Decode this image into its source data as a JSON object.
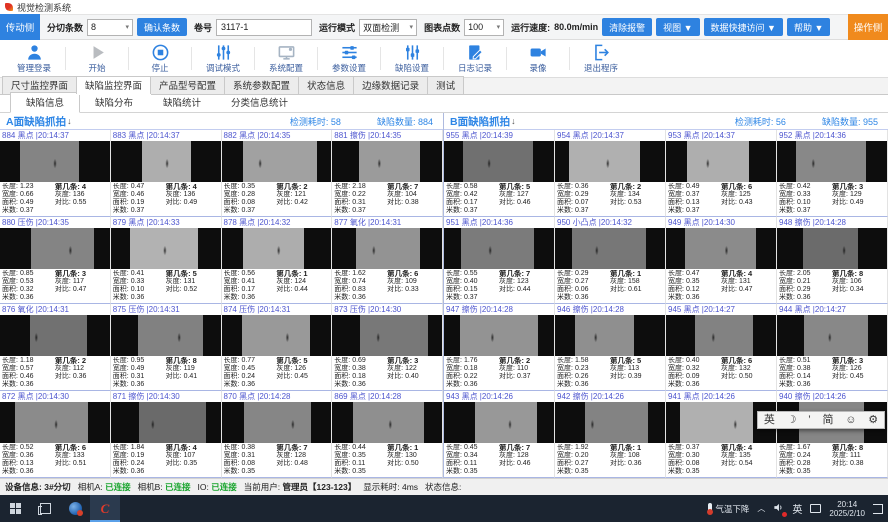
{
  "window": {
    "title": "视觉检测系统"
  },
  "icons": {
    "caret": "▾",
    "arrow_down": "↓",
    "chevron_up": "︿"
  },
  "toolbar1": {
    "side_button": "传动侧",
    "slit_count_label": "分切条数",
    "slit_count_value": "8",
    "confirm_button": "确认条数",
    "roll_label": "卷号",
    "roll_value": "3117-1",
    "run_mode_label": "运行模式",
    "run_mode_value": "双面检测",
    "chart_points_label": "图表点数",
    "chart_points_value": "100",
    "speed_label": "运行速度:",
    "speed_value": "80.0m/min",
    "clear_alarm_button": "清除报警",
    "view_menu": "视图 ▼",
    "quick_access_menu": "数据快捷访问 ▼",
    "help_menu": "帮助 ▼",
    "operator_side_button": "操作侧"
  },
  "toolbar2": {
    "items": [
      {
        "label": "管理登录",
        "icon": "user"
      },
      {
        "label": "开始",
        "icon": "play"
      },
      {
        "label": "停止",
        "icon": "stop"
      },
      {
        "label": "调试模式",
        "icon": "tune-vertical"
      },
      {
        "label": "系统配置",
        "icon": "monitor-gear"
      },
      {
        "label": "参数设置",
        "icon": "sliders-horizontal"
      },
      {
        "label": "缺陷设置",
        "icon": "sliders-vertical"
      },
      {
        "label": "日志记录",
        "icon": "log-edit"
      },
      {
        "label": "录像",
        "icon": "video-camera"
      },
      {
        "label": "退出程序",
        "icon": "exit-door"
      }
    ]
  },
  "tabs_main": [
    "尺寸监控界面",
    "缺陷监控界面",
    "产品型号配置",
    "系统参数配置",
    "状态信息",
    "边缘数据记录",
    "测试"
  ],
  "tabs_main_active_index": 1,
  "tabs_sub": [
    "缺陷信息",
    "缺陷分布",
    "缺陷统计",
    "分类信息统计"
  ],
  "tabs_sub_active_index": 0,
  "cell_labels": {
    "length": "长度:",
    "width": "宽度:",
    "area": "面积:",
    "meter": "米数:",
    "strip": "第几条:",
    "gray": "灰度:",
    "contrast": "对比:"
  },
  "panels": [
    {
      "title": "A面缺陷抓拍",
      "time_label": "检测耗时:",
      "time_value": "58",
      "count_label": "缺陷数量:",
      "count_value": "884",
      "cells": [
        {
          "id": "884",
          "type": "黑点",
          "time": "20:14:37",
          "length": "1.23",
          "width": "0.66",
          "area": "0.49",
          "meter": "0.37",
          "strip": "4",
          "gray": "136",
          "contrast": "0.55"
        },
        {
          "id": "883",
          "type": "黑点",
          "time": "20:14:37",
          "length": "0.47",
          "width": "0.46",
          "area": "0.19",
          "meter": "0.37",
          "strip": "4",
          "gray": "136",
          "contrast": "0.49"
        },
        {
          "id": "882",
          "type": "黑点",
          "time": "20:14:35",
          "length": "0.35",
          "width": "0.28",
          "area": "0.08",
          "meter": "0.37",
          "strip": "2",
          "gray": "121",
          "contrast": "0.42"
        },
        {
          "id": "881",
          "type": "擦伤",
          "time": "20:14:35",
          "length": "2.18",
          "width": "0.22",
          "area": "0.31",
          "meter": "0.37",
          "strip": "7",
          "gray": "104",
          "contrast": "0.38"
        },
        {
          "id": "880",
          "type": "压伤",
          "time": "20:14:35",
          "length": "0.85",
          "width": "0.53",
          "area": "0.32",
          "meter": "0.36",
          "strip": "3",
          "gray": "117",
          "contrast": "0.47"
        },
        {
          "id": "879",
          "type": "黑点",
          "time": "20:14:33",
          "length": "0.41",
          "width": "0.33",
          "area": "0.10",
          "meter": "0.36",
          "strip": "5",
          "gray": "131",
          "contrast": "0.52"
        },
        {
          "id": "878",
          "type": "黑点",
          "time": "20:14:32",
          "length": "0.56",
          "width": "0.41",
          "area": "0.17",
          "meter": "0.36",
          "strip": "1",
          "gray": "124",
          "contrast": "0.44"
        },
        {
          "id": "877",
          "type": "氧化",
          "time": "20:14:31",
          "length": "1.62",
          "width": "0.74",
          "area": "0.83",
          "meter": "0.36",
          "strip": "6",
          "gray": "109",
          "contrast": "0.33"
        },
        {
          "id": "876",
          "type": "氧化",
          "time": "20:14:31",
          "length": "1.18",
          "width": "0.57",
          "area": "0.46",
          "meter": "0.36",
          "strip": "2",
          "gray": "112",
          "contrast": "0.36"
        },
        {
          "id": "875",
          "type": "压伤",
          "time": "20:14:31",
          "length": "0.95",
          "width": "0.49",
          "area": "0.31",
          "meter": "0.36",
          "strip": "8",
          "gray": "119",
          "contrast": "0.41"
        },
        {
          "id": "874",
          "type": "压伤",
          "time": "20:14:31",
          "length": "0.77",
          "width": "0.45",
          "area": "0.24",
          "meter": "0.36",
          "strip": "5",
          "gray": "126",
          "contrast": "0.45"
        },
        {
          "id": "873",
          "type": "压伤",
          "time": "20:14:30",
          "length": "0.69",
          "width": "0.38",
          "area": "0.18",
          "meter": "0.36",
          "strip": "3",
          "gray": "122",
          "contrast": "0.40"
        },
        {
          "id": "872",
          "type": "黑点",
          "time": "20:14:30",
          "length": "0.52",
          "width": "0.36",
          "area": "0.13",
          "meter": "0.36",
          "strip": "6",
          "gray": "133",
          "contrast": "0.51"
        },
        {
          "id": "871",
          "type": "擦伤",
          "time": "20:14:30",
          "length": "1.84",
          "width": "0.19",
          "area": "0.24",
          "meter": "0.36",
          "strip": "4",
          "gray": "107",
          "contrast": "0.35"
        },
        {
          "id": "870",
          "type": "黑点",
          "time": "20:14:28",
          "length": "0.38",
          "width": "0.31",
          "area": "0.08",
          "meter": "0.35",
          "strip": "7",
          "gray": "128",
          "contrast": "0.48"
        },
        {
          "id": "869",
          "type": "黑点",
          "time": "20:14:28",
          "length": "0.44",
          "width": "0.35",
          "area": "0.11",
          "meter": "0.35",
          "strip": "1",
          "gray": "130",
          "contrast": "0.50"
        }
      ]
    },
    {
      "title": "B面缺陷抓拍",
      "time_label": "检测耗时:",
      "time_value": "56",
      "count_label": "缺陷数量:",
      "count_value": "955",
      "cells": [
        {
          "id": "955",
          "type": "黑点",
          "time": "20:14:39",
          "length": "0.58",
          "width": "0.42",
          "area": "0.17",
          "meter": "0.37",
          "strip": "5",
          "gray": "127",
          "contrast": "0.46"
        },
        {
          "id": "954",
          "type": "黑点",
          "time": "20:14:37",
          "length": "0.36",
          "width": "0.29",
          "area": "0.07",
          "meter": "0.37",
          "strip": "2",
          "gray": "134",
          "contrast": "0.53"
        },
        {
          "id": "953",
          "type": "黑点",
          "time": "20:14:37",
          "length": "0.49",
          "width": "0.37",
          "area": "0.13",
          "meter": "0.37",
          "strip": "6",
          "gray": "125",
          "contrast": "0.43"
        },
        {
          "id": "952",
          "type": "黑点",
          "time": "20:14:36",
          "length": "0.42",
          "width": "0.33",
          "area": "0.10",
          "meter": "0.37",
          "strip": "3",
          "gray": "129",
          "contrast": "0.49"
        },
        {
          "id": "951",
          "type": "黑点",
          "time": "20:14:36",
          "length": "0.55",
          "width": "0.40",
          "area": "0.15",
          "meter": "0.37",
          "strip": "7",
          "gray": "123",
          "contrast": "0.44"
        },
        {
          "id": "950",
          "type": "小凸点",
          "time": "20:14:32",
          "length": "0.29",
          "width": "0.27",
          "area": "0.06",
          "meter": "0.36",
          "strip": "1",
          "gray": "158",
          "contrast": "0.61"
        },
        {
          "id": "949",
          "type": "黑点",
          "time": "20:14:30",
          "length": "0.47",
          "width": "0.35",
          "area": "0.12",
          "meter": "0.36",
          "strip": "4",
          "gray": "131",
          "contrast": "0.47"
        },
        {
          "id": "948",
          "type": "擦伤",
          "time": "20:14:28",
          "length": "2.05",
          "width": "0.21",
          "area": "0.29",
          "meter": "0.36",
          "strip": "8",
          "gray": "106",
          "contrast": "0.34"
        },
        {
          "id": "947",
          "type": "擦伤",
          "time": "20:14:28",
          "length": "1.76",
          "width": "0.18",
          "area": "0.22",
          "meter": "0.36",
          "strip": "2",
          "gray": "110",
          "contrast": "0.37"
        },
        {
          "id": "946",
          "type": "擦伤",
          "time": "20:14:28",
          "length": "1.58",
          "width": "0.23",
          "area": "0.26",
          "meter": "0.36",
          "strip": "5",
          "gray": "113",
          "contrast": "0.39"
        },
        {
          "id": "945",
          "type": "黑点",
          "time": "20:14:27",
          "length": "0.40",
          "width": "0.32",
          "area": "0.09",
          "meter": "0.36",
          "strip": "6",
          "gray": "132",
          "contrast": "0.50"
        },
        {
          "id": "944",
          "type": "黑点",
          "time": "20:14:27",
          "length": "0.51",
          "width": "0.38",
          "area": "0.14",
          "meter": "0.36",
          "strip": "3",
          "gray": "126",
          "contrast": "0.45"
        },
        {
          "id": "943",
          "type": "黑点",
          "time": "20:14:26",
          "length": "0.45",
          "width": "0.34",
          "area": "0.11",
          "meter": "0.35",
          "strip": "7",
          "gray": "128",
          "contrast": "0.46"
        },
        {
          "id": "942",
          "type": "擦伤",
          "time": "20:14:26",
          "length": "1.92",
          "width": "0.20",
          "area": "0.27",
          "meter": "0.35",
          "strip": "1",
          "gray": "108",
          "contrast": "0.36"
        },
        {
          "id": "941",
          "type": "黑点",
          "time": "20:14:26",
          "length": "0.37",
          "width": "0.30",
          "area": "0.08",
          "meter": "0.35",
          "strip": "4",
          "gray": "135",
          "contrast": "0.54"
        },
        {
          "id": "940",
          "type": "擦伤",
          "time": "20:14:26",
          "length": "1.67",
          "width": "0.24",
          "area": "0.28",
          "meter": "0.35",
          "strip": "8",
          "gray": "111",
          "contrast": "0.38"
        }
      ]
    }
  ],
  "statusbar": {
    "device_label": "设备信息:",
    "device_value": "3#分切",
    "cam_a_label": "相机A:",
    "cam_a_value": "已连接",
    "cam_b_label": "相机B:",
    "cam_b_value": "已连接",
    "io_label": "IO:",
    "io_value": "已连接",
    "user_label": "当前用户:",
    "user_value": "管理员【123-123】",
    "display_time_label": "显示耗时:",
    "display_time_value": "4ms",
    "status_label": "状态信息:"
  },
  "taskbar": {
    "weather_text": "气温下降",
    "lang_indicator": "英",
    "time": "20:14",
    "date": "2025/2/10"
  },
  "ime_bar": {
    "lang": "英",
    "shape": "☽",
    "punct": "’",
    "charset": "简",
    "emoji": "☺",
    "settings": "⚙"
  },
  "accent_colors": {
    "blue": "#2e82e0",
    "orange": "#f08a1d",
    "green": "#17a42c",
    "cell_text": "#4d55cf"
  }
}
